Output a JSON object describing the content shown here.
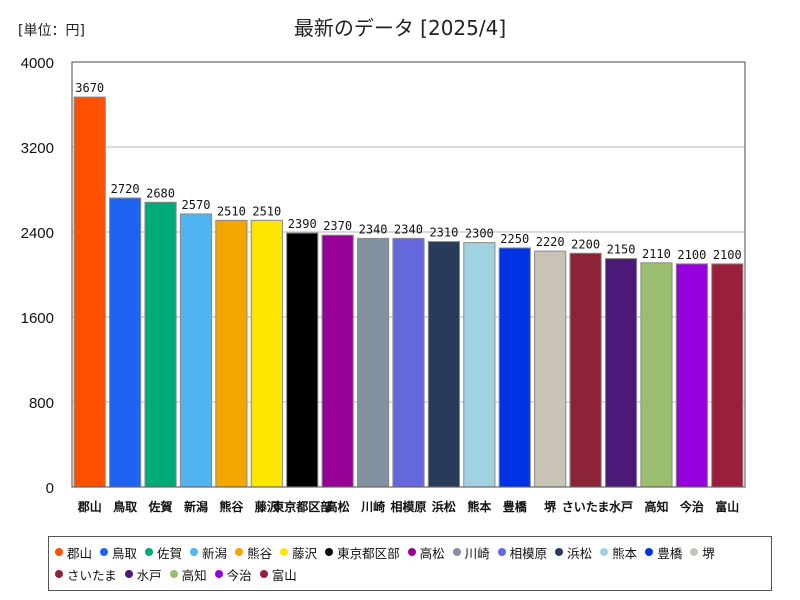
{
  "chart_data": {
    "type": "bar",
    "title": "最新のデータ [2025/4]",
    "unit_label": "[単位：円]",
    "ylim": [
      0,
      4000
    ],
    "yticks": [
      0,
      800,
      1600,
      2400,
      3200,
      4000
    ],
    "grid": true,
    "legend_position": "bottom",
    "categories": [
      "郡山",
      "鳥取",
      "佐賀",
      "新潟",
      "熊谷",
      "藤沢",
      "東京都区部",
      "高松",
      "川崎",
      "相模原",
      "浜松",
      "熊本",
      "豊橋",
      "堺",
      "さいたま",
      "水戸",
      "高知",
      "今治",
      "富山"
    ],
    "values": [
      3670,
      2720,
      2680,
      2570,
      2510,
      2510,
      2390,
      2370,
      2340,
      2340,
      2310,
      2300,
      2250,
      2220,
      2200,
      2150,
      2110,
      2100,
      2100
    ],
    "colors": [
      "#ff5000",
      "#1e64f0",
      "#00aa78",
      "#50b4f0",
      "#f5a500",
      "#ffe600",
      "#000000",
      "#960096",
      "#8291a0",
      "#6468dc",
      "#283c5a",
      "#a0d2e1",
      "#0032e6",
      "#c8c3b4",
      "#8c2337",
      "#4b1978",
      "#9bbe6e",
      "#9600dc",
      "#9b1e3c"
    ]
  }
}
